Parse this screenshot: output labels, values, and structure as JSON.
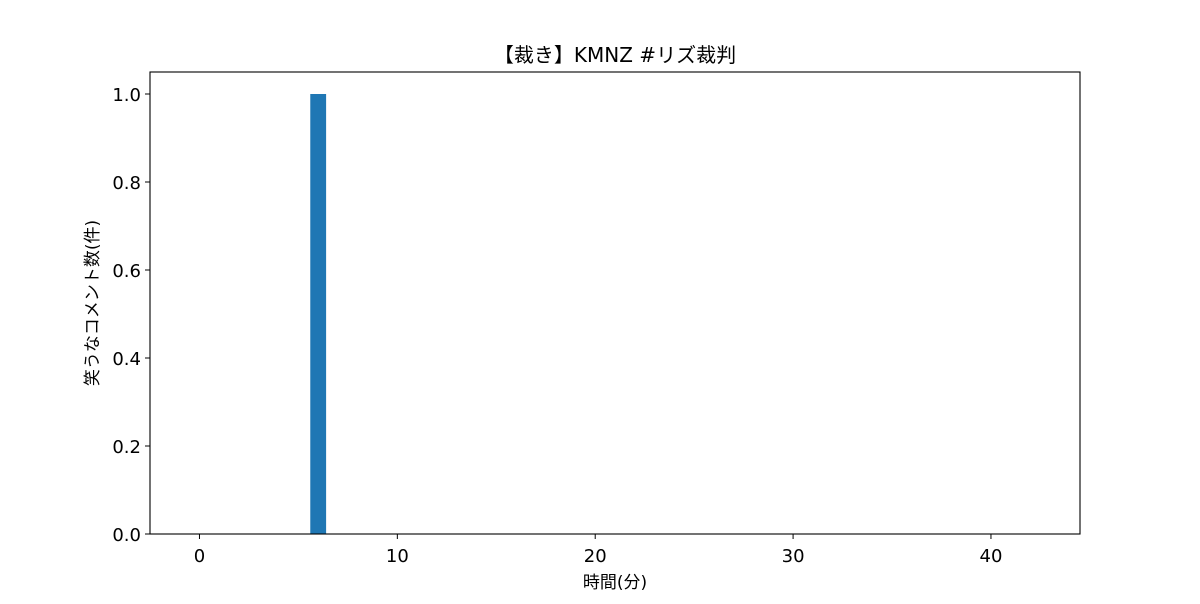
{
  "chart_data": {
    "type": "bar",
    "title": "【裁き】KMNZ #リズ裁判",
    "xlabel": "時間(分)",
    "ylabel": "笑うなコメント数(件)",
    "x": [
      6
    ],
    "values": [
      1.0
    ],
    "xlim": [
      -2.5,
      44.5
    ],
    "ylim": [
      0,
      1.05
    ],
    "xticks": [
      0,
      10,
      20,
      30,
      40
    ],
    "xtick_labels": [
      "0",
      "10",
      "20",
      "30",
      "40"
    ],
    "yticks": [
      0.0,
      0.2,
      0.4,
      0.6,
      0.8,
      1.0
    ],
    "ytick_labels": [
      "0.0",
      "0.2",
      "0.4",
      "0.6",
      "0.8",
      "1.0"
    ],
    "bar_color": "#1f77b4",
    "grid": false,
    "legend": "none"
  }
}
